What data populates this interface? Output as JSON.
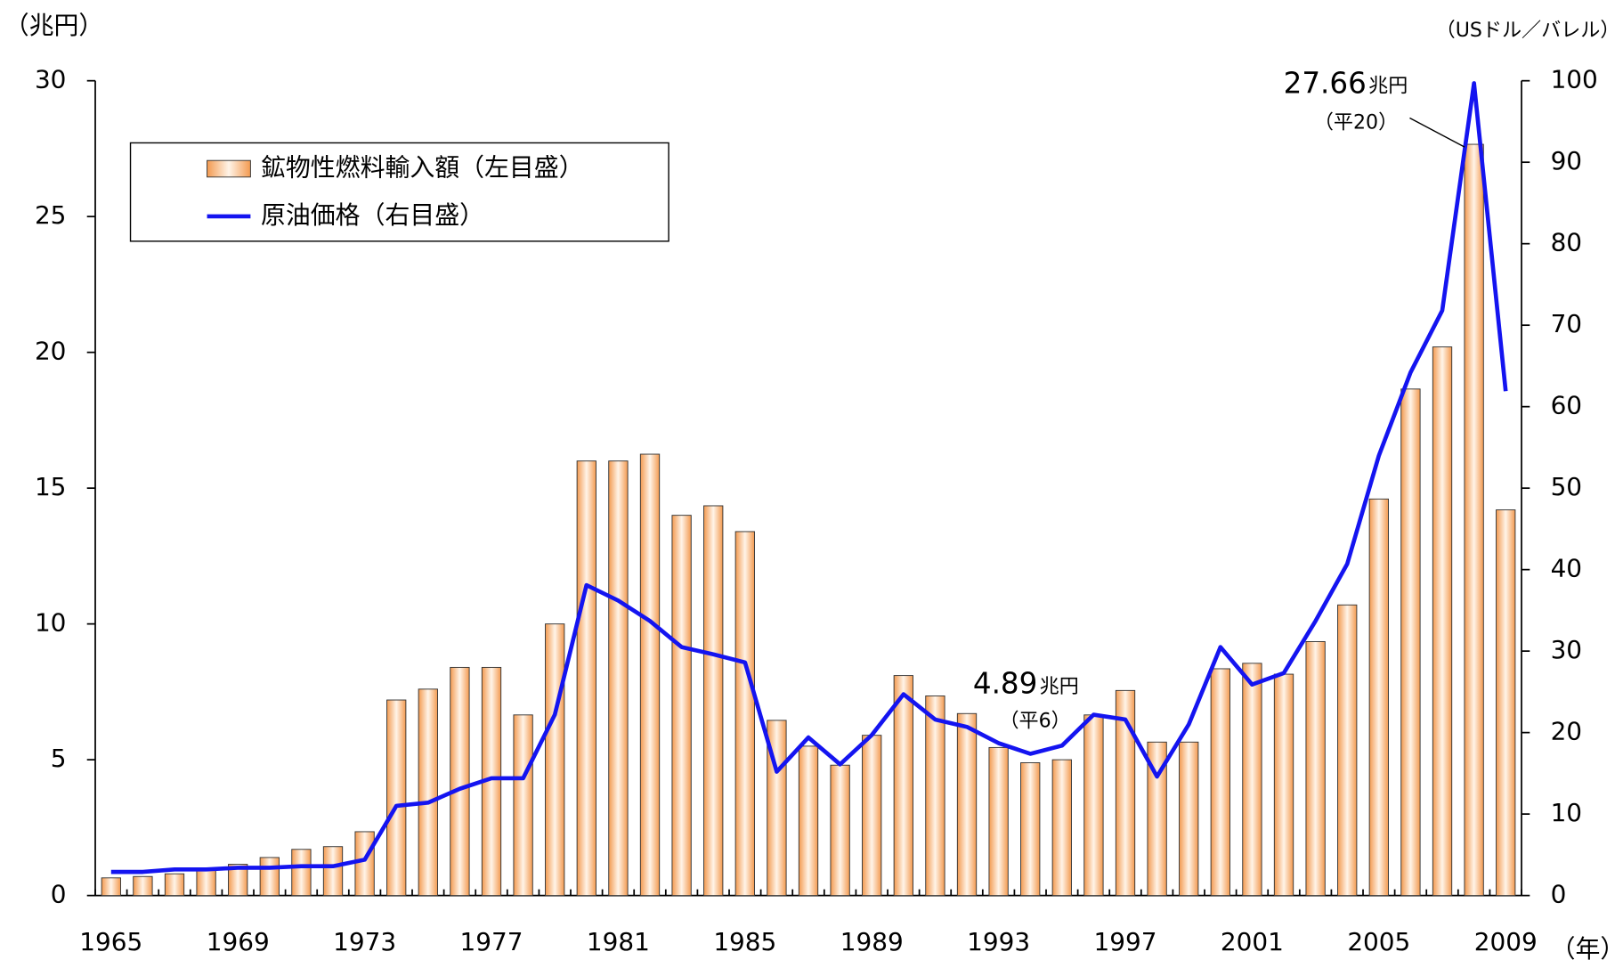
{
  "chart_data": {
    "type": "bar",
    "y_label": "（兆円）",
    "y2_label": "（USドル／バレル）",
    "x_label": "（年）",
    "categories": [
      "1965",
      null,
      null,
      null,
      "1969",
      null,
      null,
      null,
      "1973",
      null,
      null,
      null,
      "1977",
      null,
      null,
      null,
      "1981",
      null,
      null,
      null,
      "1985",
      null,
      null,
      null,
      "1989",
      null,
      null,
      null,
      "1993",
      null,
      null,
      null,
      "1997",
      null,
      null,
      null,
      "2001",
      null,
      null,
      null,
      "2005",
      null,
      null,
      null,
      "2009"
    ],
    "series": [
      {
        "name": "鉱物性燃料輸入額（左目盛）",
        "type": "bar",
        "color": "#f39a50",
        "values": [
          0.65,
          0.7,
          0.8,
          0.95,
          1.15,
          1.4,
          1.7,
          1.8,
          2.35,
          7.2,
          7.6,
          8.4,
          8.4,
          6.65,
          10.0,
          16.0,
          16.0,
          16.25,
          14.0,
          14.35,
          13.4,
          6.45,
          5.5,
          4.8,
          5.9,
          8.1,
          7.35,
          6.7,
          5.45,
          4.89,
          5.0,
          6.65,
          7.55,
          5.65,
          5.65,
          8.35,
          8.55,
          8.15,
          9.35,
          10.7,
          14.6,
          18.65,
          20.2,
          27.66,
          14.2
        ]
      },
      {
        "name": "原油価格（右目盛）",
        "type": "line",
        "axis": "y2",
        "color": "#1414f0",
        "values": [
          2.9,
          2.9,
          3.2,
          3.2,
          3.4,
          3.4,
          3.6,
          3.6,
          4.4,
          11.0,
          11.4,
          13.1,
          14.4,
          14.4,
          22.2,
          38.1,
          36.2,
          33.7,
          30.5,
          29.6,
          28.6,
          15.2,
          19.4,
          16.1,
          19.7,
          24.7,
          21.6,
          20.7,
          18.7,
          17.4,
          18.4,
          22.2,
          21.6,
          14.6,
          21.0,
          30.5,
          25.9,
          27.3,
          33.7,
          40.7,
          54.0,
          64.2,
          71.8,
          99.7,
          61.9
        ]
      }
    ],
    "ylim": [
      0,
      30
    ],
    "yticks": [
      0,
      5,
      10,
      15,
      20,
      25,
      30
    ],
    "y2lim": [
      0,
      100
    ],
    "y2ticks": [
      0,
      10,
      20,
      30,
      40,
      50,
      60,
      70,
      80,
      90,
      100
    ],
    "legend": "top-left",
    "annotations": [
      {
        "value": "27.66",
        "unit": "兆円",
        "note": "（平20）"
      },
      {
        "value": "4.89",
        "unit": "兆円",
        "note": "（平6）"
      }
    ]
  }
}
